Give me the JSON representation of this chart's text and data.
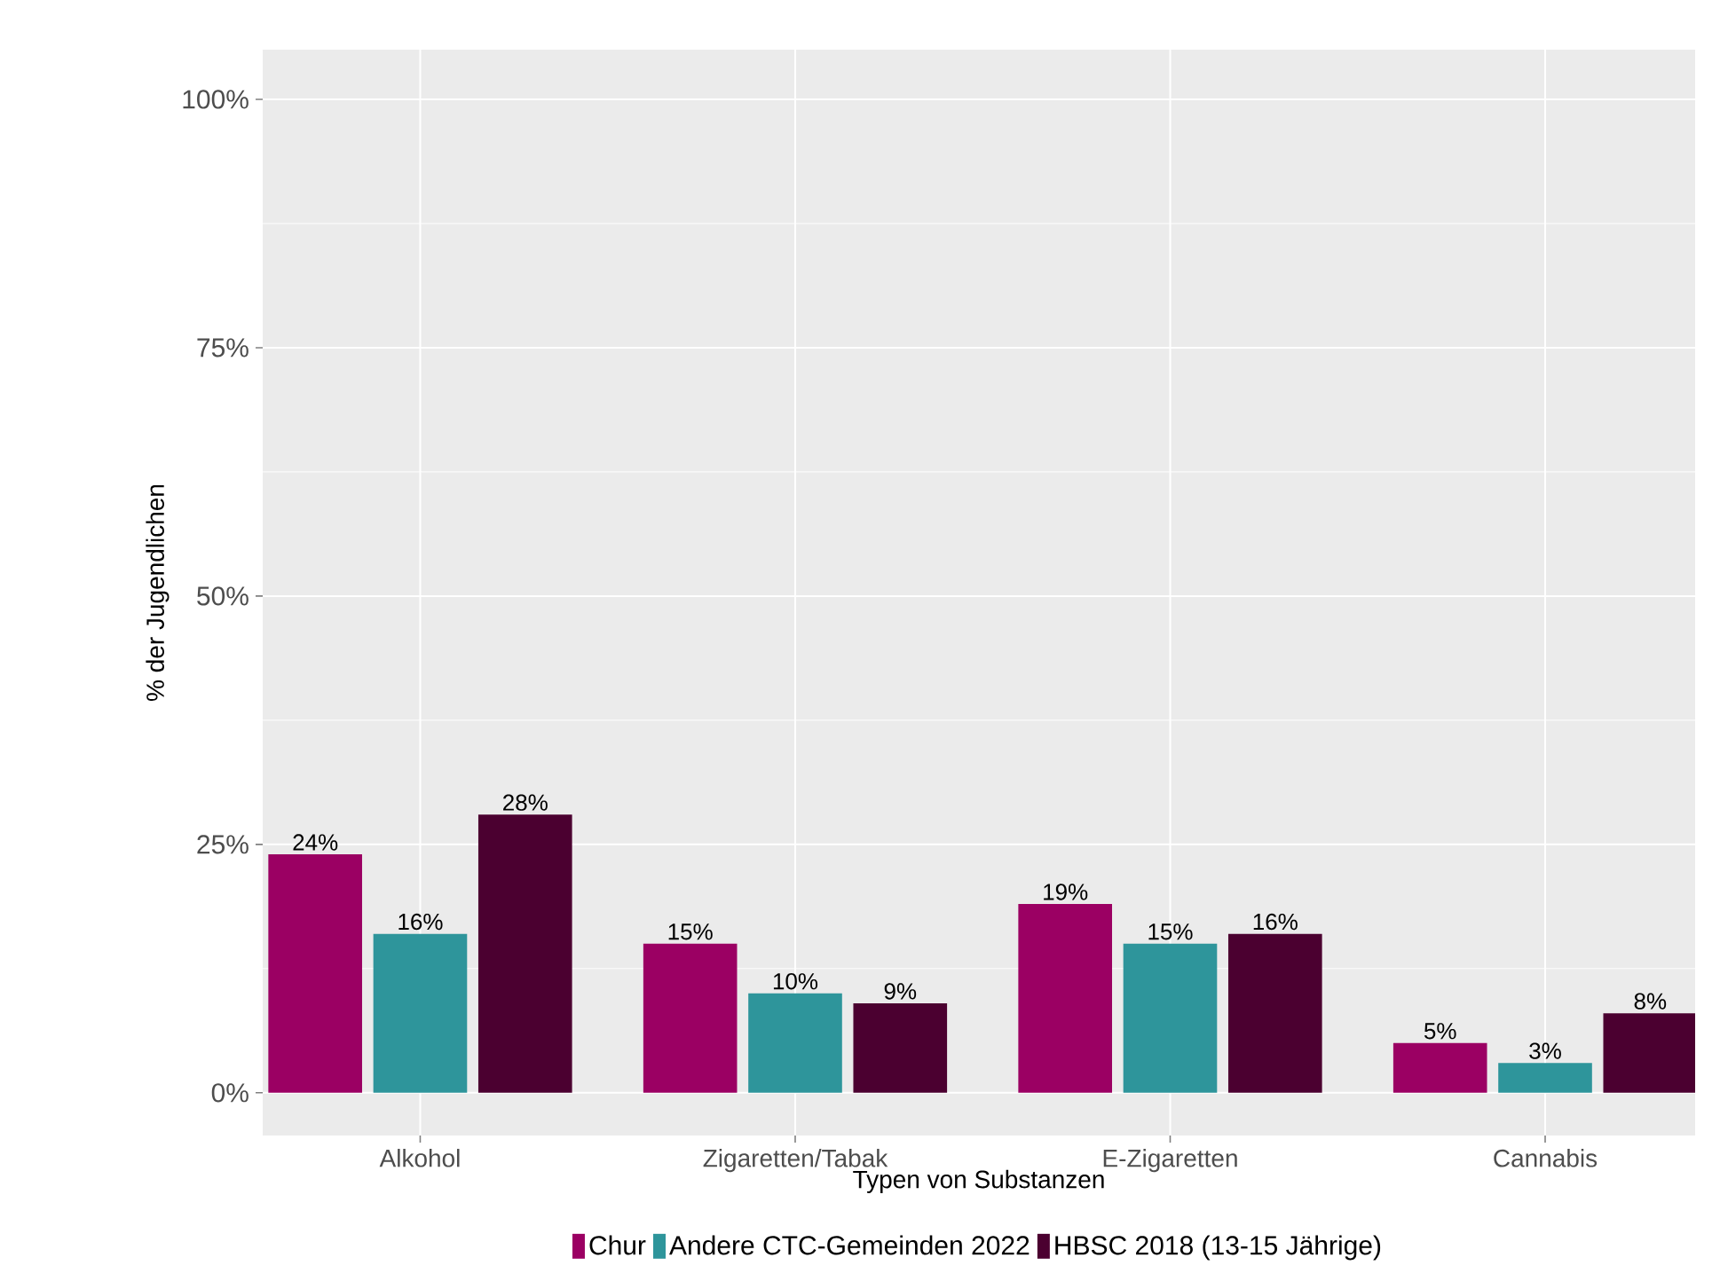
{
  "chart_data": {
    "type": "bar",
    "xlabel": "Typen von Substanzen",
    "ylabel": "% der Jugendlichen",
    "categories": [
      "Alkohol",
      "Zigaretten/Tabak",
      "E-Zigaretten",
      "Cannabis"
    ],
    "series": [
      {
        "name": "Chur",
        "color": "#9b0063",
        "values": [
          24,
          15,
          19,
          5
        ],
        "value_labels": [
          "24%",
          "15%",
          "19%",
          "5%"
        ]
      },
      {
        "name": "Andere CTC-Gemeinden 2022",
        "color": "#2e959b",
        "values": [
          16,
          10,
          15,
          3
        ],
        "value_labels": [
          "16%",
          "10%",
          "15%",
          "3%"
        ]
      },
      {
        "name": "HBSC 2018 (13-15 Jährige)",
        "color": "#4b0030",
        "values": [
          28,
          9,
          16,
          8
        ],
        "value_labels": [
          "28%",
          "9%",
          "16%",
          "8%"
        ]
      }
    ],
    "ylim": [
      -4.3,
      105
    ],
    "yticks": [
      {
        "value": 0,
        "label": "0%"
      },
      {
        "value": 25,
        "label": "25%"
      },
      {
        "value": 50,
        "label": "50%"
      },
      {
        "value": 75,
        "label": "75%"
      },
      {
        "value": 100,
        "label": "100%"
      }
    ],
    "grid": true,
    "legend": "bottom"
  }
}
